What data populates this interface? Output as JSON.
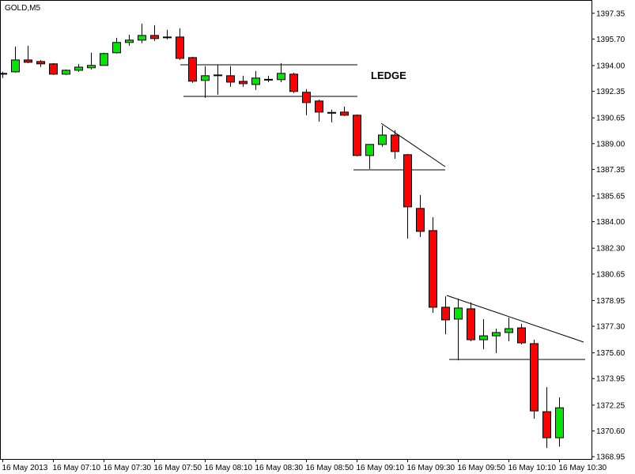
{
  "chart_data": {
    "type": "candlestick",
    "title": "GOLD,M5",
    "annotations": [
      "LEDGE"
    ],
    "categories": [
      "16 May 2013",
      null,
      null,
      null,
      "16 May 07:10",
      null,
      null,
      null,
      "16 May 07:30",
      null,
      null,
      null,
      "16 May 07:50",
      null,
      null,
      null,
      "16 May 08:10",
      null,
      null,
      null,
      "16 May 08:30",
      null,
      null,
      null,
      "16 May 08:50",
      null,
      null,
      null,
      "16 May 09:10",
      null,
      null,
      null,
      "16 May 09:30",
      null,
      null,
      null,
      "16 May 09:50",
      null,
      null,
      null,
      "16 May 10:10",
      null,
      null,
      null,
      "16 May 10:30"
    ],
    "open": [
      1393.45,
      1393.6,
      1394.36,
      1394.26,
      1394.11,
      1393.45,
      1393.7,
      1393.86,
      1394.01,
      1394.82,
      1395.48,
      1395.63,
      1395.93,
      1395.83,
      1395.83,
      1394.51,
      1393.05,
      1393.35,
      1393.35,
      1392.99,
      1392.79,
      1393.08,
      1393.1,
      1393.45,
      1392.29,
      1391.73,
      1391.0,
      1391.02,
      1390.82,
      1388.24,
      1388.95,
      1389.55,
      1388.29,
      1384.85,
      1383.43,
      1378.52,
      1377.76,
      1378.42,
      1376.44,
      1376.69,
      1376.9,
      1377.2,
      1376.19,
      1371.83,
      1370.16
    ],
    "high": [
      1393.6,
      1395.22,
      1395.27,
      1394.36,
      1394.16,
      1393.75,
      1394.1,
      1394.82,
      1394.82,
      1395.78,
      1395.98,
      1396.69,
      1396.59,
      1396.29,
      1396.39,
      1394.56,
      1393.96,
      1394.06,
      1393.96,
      1393.35,
      1393.65,
      1393.35,
      1394.16,
      1393.55,
      1392.49,
      1391.83,
      1391.17,
      1391.37,
      1390.87,
      1388.95,
      1390.16,
      1389.86,
      1388.34,
      1385.71,
      1384.29,
      1379.22,
      1379.07,
      1378.83,
      1377.76,
      1377.15,
      1377.86,
      1377.45,
      1376.44,
      1373.4,
      1372.74
    ],
    "low": [
      1393.2,
      1393.55,
      1394.16,
      1393.91,
      1393.4,
      1393.4,
      1393.6,
      1393.75,
      1394.0,
      1394.77,
      1395.27,
      1395.43,
      1395.58,
      1395.68,
      1394.36,
      1392.89,
      1391.93,
      1392.14,
      1392.64,
      1392.64,
      1392.44,
      1392.94,
      1392.94,
      1392.24,
      1390.82,
      1390.41,
      1390.36,
      1390.77,
      1388.19,
      1387.38,
      1388.8,
      1388.03,
      1382.92,
      1383.02,
      1378.16,
      1376.79,
      1375.12,
      1376.34,
      1375.83,
      1375.58,
      1376.34,
      1376.14,
      1371.38,
      1369.5,
      1369.6
    ],
    "close": [
      1393.5,
      1394.36,
      1394.21,
      1394.11,
      1393.45,
      1393.7,
      1393.9,
      1394.01,
      1394.77,
      1395.48,
      1395.63,
      1395.93,
      1395.73,
      1395.8,
      1394.46,
      1393.0,
      1393.35,
      1393.4,
      1392.94,
      1392.84,
      1393.2,
      1393.12,
      1393.5,
      1392.34,
      1391.63,
      1391.02,
      1390.98,
      1390.82,
      1388.24,
      1388.95,
      1389.55,
      1388.49,
      1384.95,
      1383.38,
      1378.52,
      1377.71,
      1378.47,
      1376.44,
      1376.69,
      1376.9,
      1377.15,
      1376.24,
      1371.88,
      1370.16,
      1372.08
    ],
    "up_color": "#00e600",
    "down_color": "#ff0000",
    "ylim": [
      1368.8,
      1398.2
    ],
    "yticks": [
      1397.35,
      {
        "value": 1395.7,
        "label": "1395.70"
      },
      {
        "value": 1394.0,
        "label": "1394.00"
      },
      1392.35,
      1390.65,
      {
        "value": 1389.0,
        "label": "1389.00"
      },
      1387.35,
      1385.65,
      {
        "value": 1384.0,
        "label": "1384.00"
      },
      {
        "value": 1382.3,
        "label": "1382.30"
      },
      1380.65,
      1378.95,
      {
        "value": 1377.3,
        "label": "1377.30"
      },
      {
        "value": 1375.6,
        "label": "1375.60"
      },
      1373.95,
      1372.25,
      {
        "value": 1370.6,
        "label": "1370.60"
      },
      1368.95
    ],
    "grid": false
  }
}
